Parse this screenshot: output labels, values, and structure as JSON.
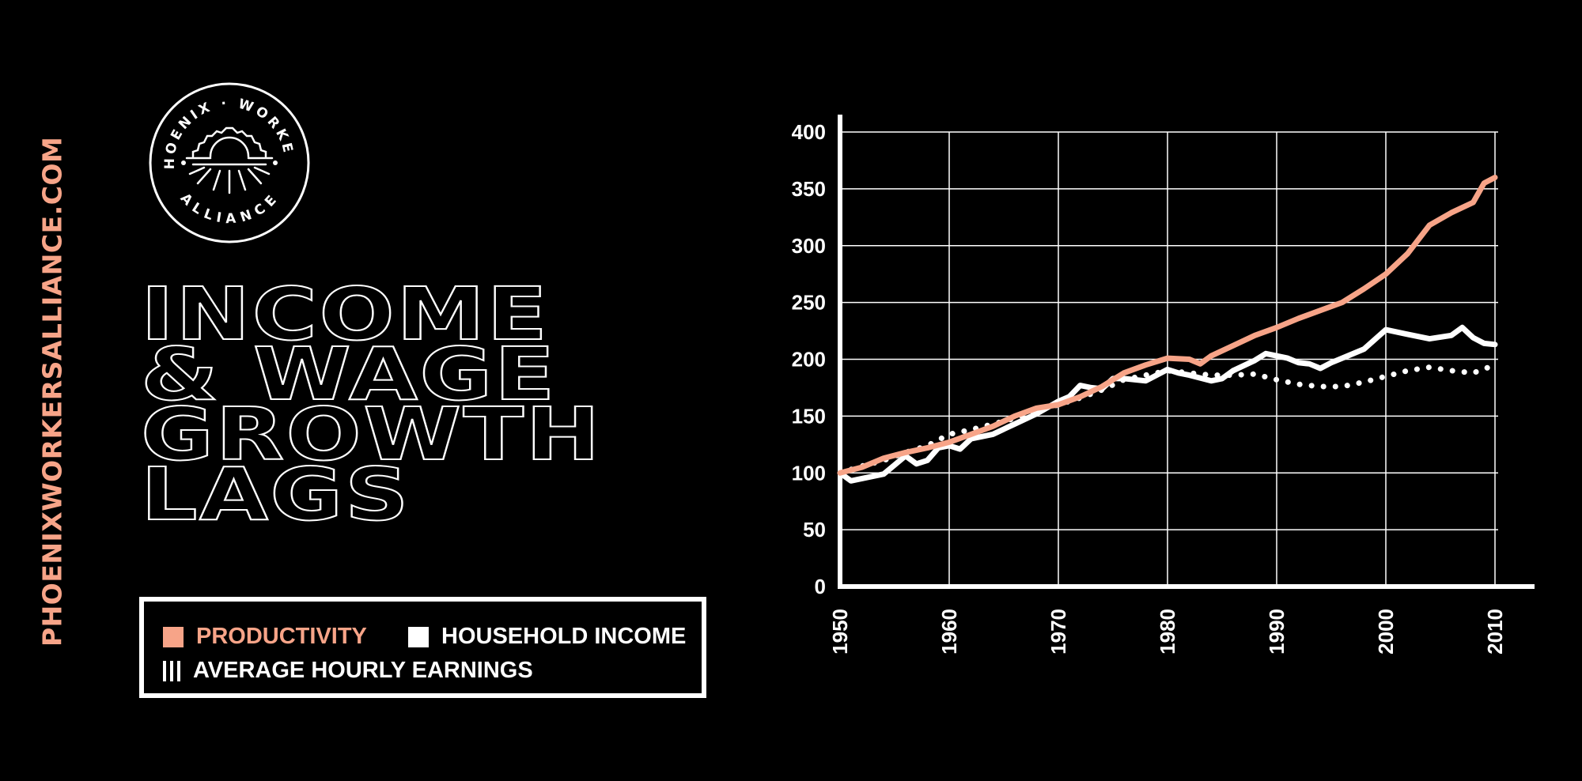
{
  "side_url": "PHOENIXWORKERSALLIANCE.COM",
  "logo": {
    "text_top": "PHOENIX · WORKERS",
    "text_bottom": "ALLIANCE"
  },
  "title_lines": [
    "INCOME",
    "& WAGE",
    "GROWTH",
    "LAGS"
  ],
  "legend": [
    {
      "label": "PRODUCTIVITY",
      "color": "#f7a488",
      "style": "solid"
    },
    {
      "label": "HOUSEHOLD INCOME",
      "color": "#ffffff",
      "style": "solid"
    },
    {
      "label": "AVERAGE HOURLY EARNINGS",
      "color": "#ffffff",
      "style": "dotted"
    }
  ],
  "colors": {
    "background": "#000000",
    "accent": "#f7a488",
    "foreground": "#ffffff"
  },
  "chart_data": {
    "type": "line",
    "xlim": [
      1950,
      2010
    ],
    "ylim": [
      0,
      400
    ],
    "x_ticks": [
      "1950",
      "1960",
      "1970",
      "1980",
      "1990",
      "2000",
      "2010"
    ],
    "y_ticks": [
      "400",
      "350",
      "300",
      "250",
      "200",
      "150",
      "100",
      "50",
      "0"
    ],
    "grid": true,
    "series": [
      {
        "name": "PRODUCTIVITY",
        "color": "#f7a488",
        "style": "solid",
        "x": [
          1950,
          1952,
          1954,
          1956,
          1958,
          1960,
          1962,
          1964,
          1966,
          1968,
          1970,
          1972,
          1974,
          1976,
          1978,
          1980,
          1982,
          1983,
          1984,
          1986,
          1988,
          1990,
          1992,
          1994,
          1996,
          1998,
          2000,
          2002,
          2004,
          2006,
          2008,
          2009,
          2010
        ],
        "y": [
          100,
          105,
          113,
          118,
          122,
          127,
          134,
          141,
          150,
          157,
          160,
          167,
          176,
          188,
          195,
          201,
          200,
          196,
          203,
          212,
          221,
          228,
          236,
          243,
          250,
          262,
          275,
          293,
          318,
          329,
          338,
          355,
          360
        ]
      },
      {
        "name": "HOUSEHOLD INCOME",
        "color": "#ffffff",
        "style": "solid",
        "x": [
          1950,
          1951,
          1952,
          1954,
          1955,
          1956,
          1957,
          1958,
          1959,
          1960,
          1961,
          1962,
          1964,
          1966,
          1968,
          1970,
          1971,
          1972,
          1973,
          1974,
          1975,
          1976,
          1978,
          1980,
          1981,
          1982,
          1984,
          1985,
          1986,
          1988,
          1989,
          1990,
          1991,
          1992,
          1993,
          1994,
          1995,
          1996,
          1998,
          2000,
          2002,
          2004,
          2006,
          2007,
          2008,
          2009,
          2010
        ],
        "y": [
          100,
          93,
          95,
          99,
          107,
          115,
          108,
          111,
          122,
          124,
          121,
          130,
          134,
          143,
          152,
          163,
          167,
          177,
          175,
          174,
          183,
          183,
          181,
          191,
          188,
          186,
          181,
          183,
          190,
          199,
          205,
          203,
          201,
          197,
          196,
          192,
          197,
          201,
          209,
          226,
          222,
          218,
          221,
          228,
          219,
          214,
          213
        ]
      },
      {
        "name": "AVERAGE HOURLY EARNINGS",
        "color": "#ffffff",
        "style": "dotted",
        "x": [
          1950,
          1952,
          1954,
          1956,
          1958,
          1960,
          1962,
          1964,
          1966,
          1968,
          1970,
          1972,
          1974,
          1976,
          1978,
          1980,
          1982,
          1984,
          1986,
          1988,
          1990,
          1992,
          1994,
          1996,
          1998,
          2000,
          2002,
          2004,
          2006,
          2008,
          2010
        ],
        "y": [
          100,
          106,
          111,
          118,
          124,
          134,
          138,
          143,
          148,
          154,
          160,
          166,
          173,
          182,
          186,
          190,
          188,
          186,
          186,
          187,
          182,
          178,
          176,
          176,
          180,
          185,
          190,
          193,
          190,
          188,
          195
        ]
      }
    ]
  }
}
